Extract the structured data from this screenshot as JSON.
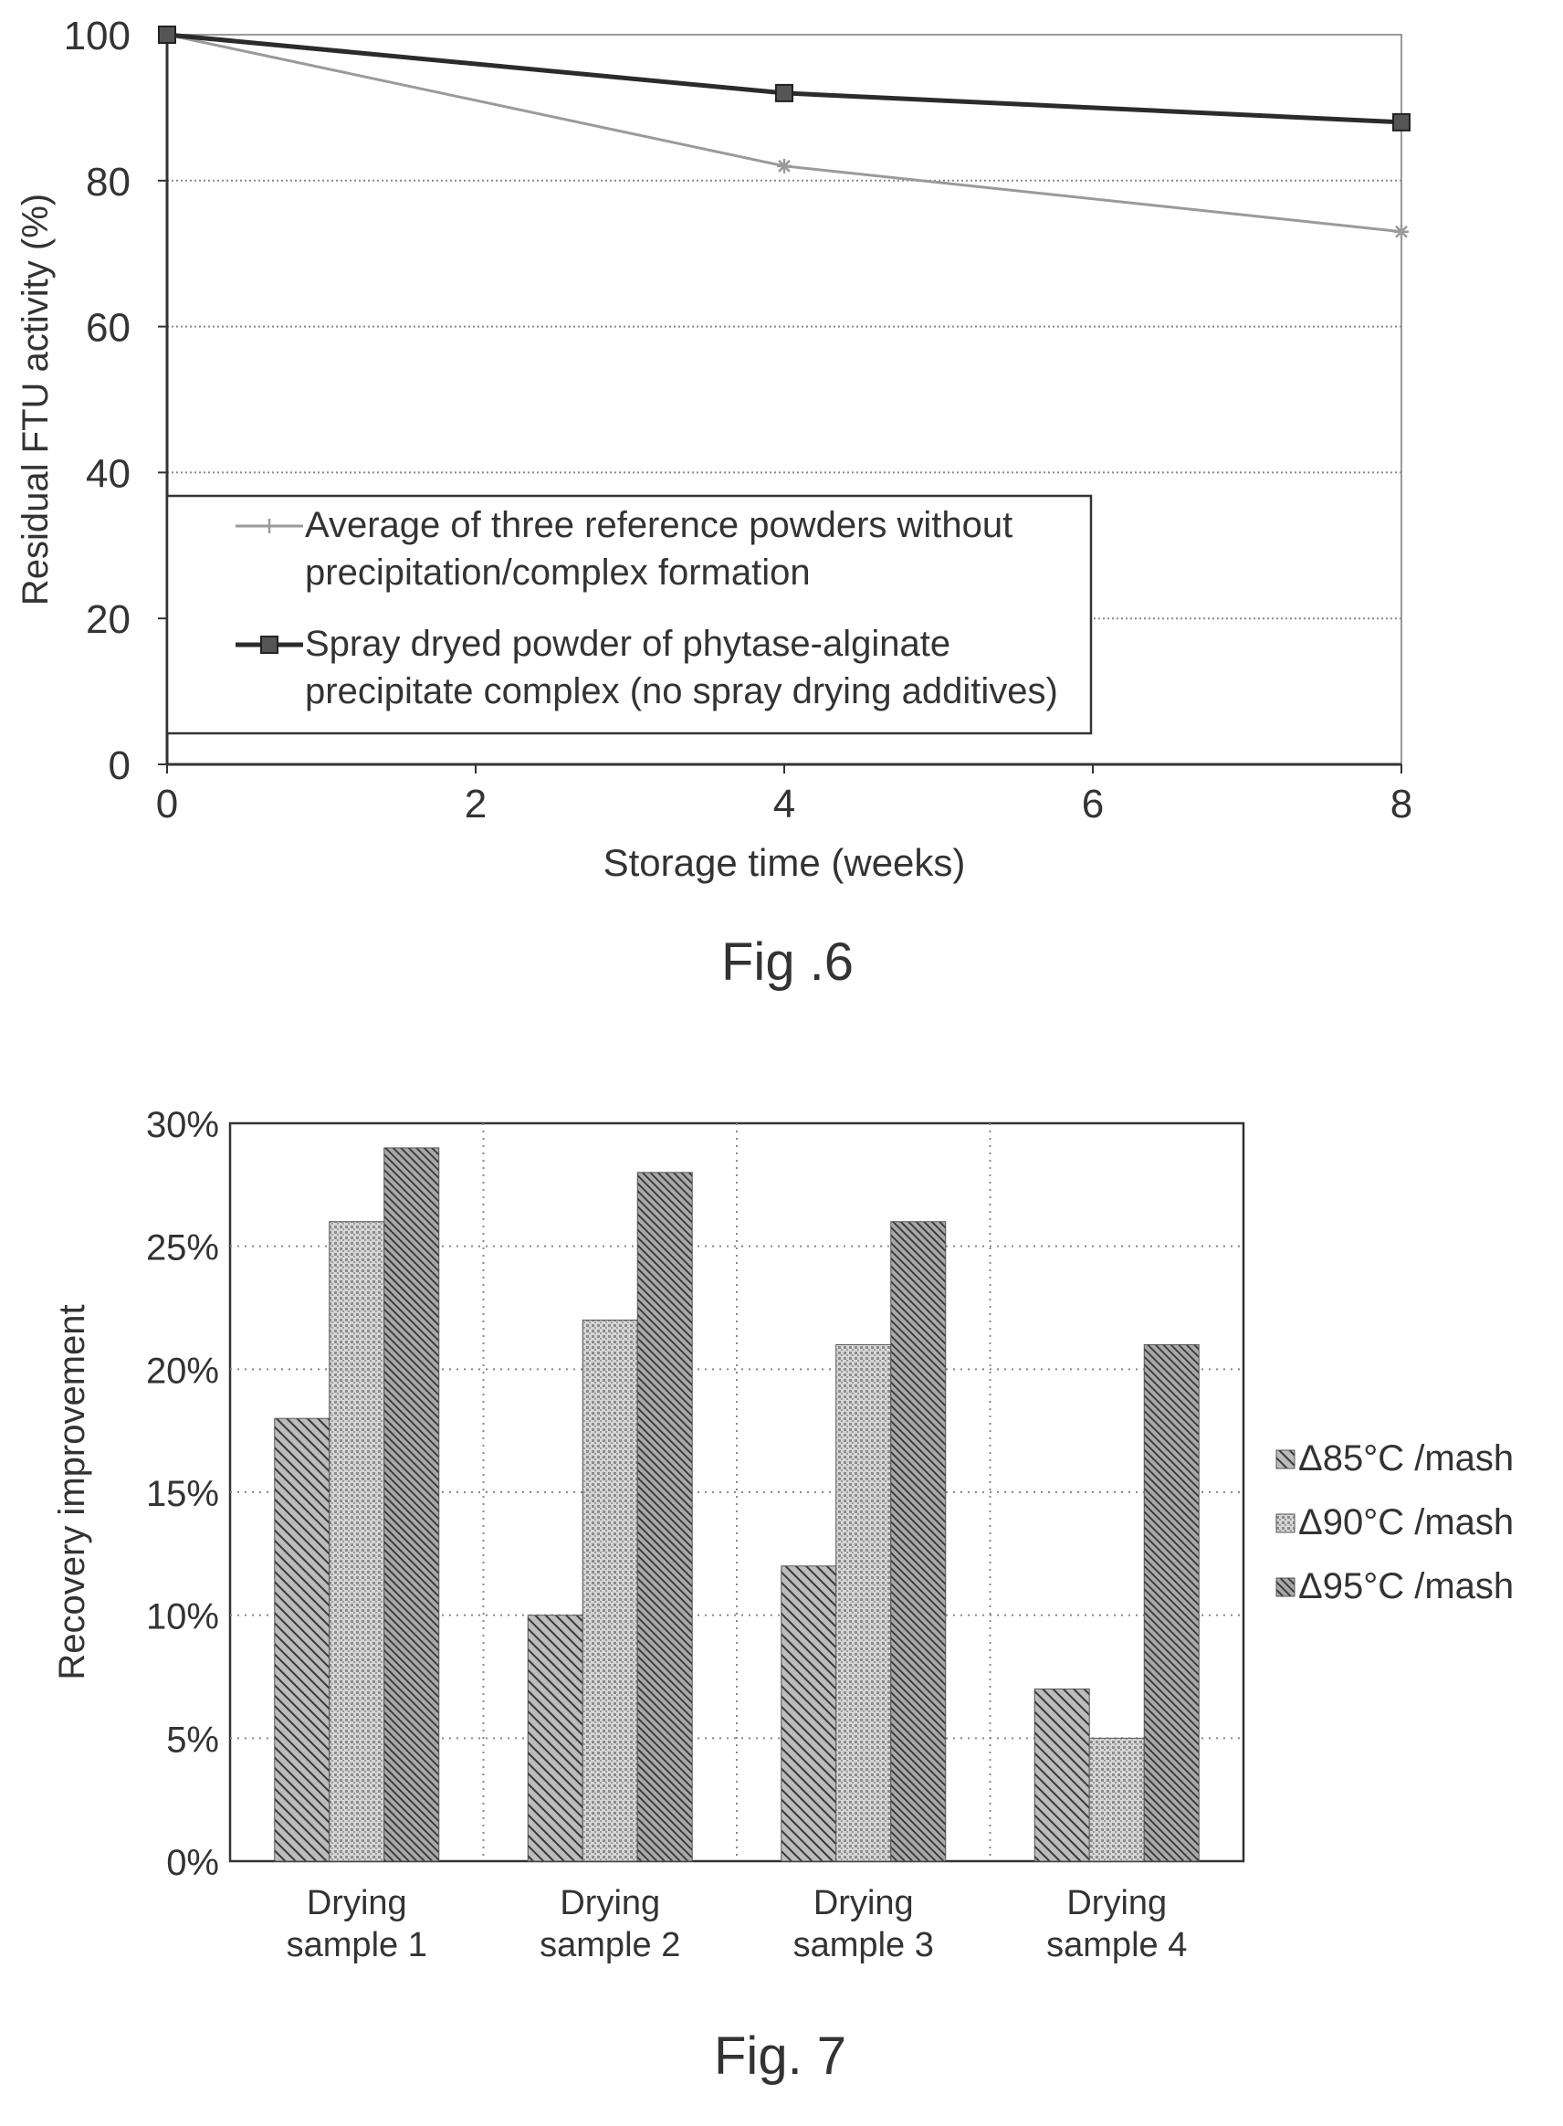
{
  "chart_data": [
    {
      "type": "line",
      "caption": "Fig .6",
      "xlabel": "Storage time (weeks)",
      "ylabel": "Residual FTU activity (%)",
      "xlim": [
        0,
        8
      ],
      "ylim": [
        0,
        100
      ],
      "xticks": [
        0,
        2,
        4,
        6,
        8
      ],
      "yticks": [
        0,
        20,
        40,
        60,
        80,
        100
      ],
      "grid": "horizontal",
      "legend_position": "bottom-left",
      "series": [
        {
          "name_lines": [
            "Average of three reference powders without",
            "precipitation/complex formation"
          ],
          "name": "Average of three reference powders without precipitation/complex formation",
          "x": [
            0,
            4,
            8
          ],
          "y": [
            100,
            82,
            73
          ],
          "color": "#9a9a9a",
          "marker": "star"
        },
        {
          "name_lines": [
            "Spray dryed powder of phytase-alginate",
            "precipitate complex (no spray drying additives)"
          ],
          "name": "Spray dryed powder of phytase-alginate precipitate complex (no spray drying additives)",
          "x": [
            0,
            4,
            8
          ],
          "y": [
            100,
            92,
            88
          ],
          "color": "#2b2b2b",
          "marker": "square"
        }
      ]
    },
    {
      "type": "bar",
      "caption": "Fig. 7",
      "xlabel": "",
      "ylabel": "Recovery improvement",
      "ylim": [
        0,
        30
      ],
      "yticks": [
        "0%",
        "5%",
        "10%",
        "15%",
        "20%",
        "25%",
        "30%"
      ],
      "grid": "dotted",
      "legend_position": "right",
      "categories": [
        [
          "Drying",
          "sample 1"
        ],
        [
          "Drying",
          "sample 2"
        ],
        [
          "Drying",
          "sample 3"
        ],
        [
          "Drying",
          "sample 4"
        ]
      ],
      "series": [
        {
          "name": "Δ85°C /mash",
          "values": [
            18,
            10,
            12,
            7
          ],
          "pattern": "diag-back",
          "color": "#555555"
        },
        {
          "name": "Δ90°C /mash",
          "values": [
            26,
            22,
            21,
            5
          ],
          "pattern": "dots",
          "color": "#888888"
        },
        {
          "name": "Δ95°C /mash",
          "values": [
            29,
            28,
            26,
            21
          ],
          "pattern": "diag-dense",
          "color": "#444444"
        }
      ]
    }
  ]
}
